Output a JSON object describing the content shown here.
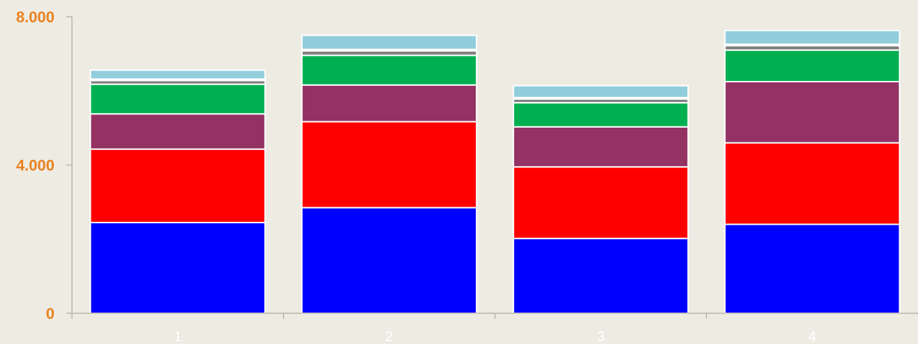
{
  "chart_data": {
    "type": "bar",
    "stacked": true,
    "categories": [
      "1",
      "2",
      "3",
      "4"
    ],
    "ylim": [
      0,
      8000
    ],
    "yticks": [
      0,
      4000,
      8000
    ],
    "ytick_labels": [
      "0",
      "4.000",
      "8.000"
    ],
    "xlabel": "",
    "ylabel": "",
    "grid": false,
    "series": [
      {
        "color": "#0000ff",
        "values": [
          2450,
          2850,
          2020,
          2400
        ]
      },
      {
        "color": "#ff0000",
        "values": [
          1980,
          2320,
          1930,
          2200
        ]
      },
      {
        "color": "#943264",
        "values": [
          950,
          990,
          1080,
          1650
        ]
      },
      {
        "color": "#00b050",
        "values": [
          800,
          800,
          650,
          850
        ]
      },
      {
        "color": "#808080",
        "values": [
          100,
          120,
          100,
          120
        ]
      },
      {
        "color": "#a6a6a6",
        "values": [
          40,
          40,
          40,
          40
        ]
      },
      {
        "color": "#92cddc",
        "values": [
          240,
          380,
          320,
          370
        ]
      }
    ]
  }
}
